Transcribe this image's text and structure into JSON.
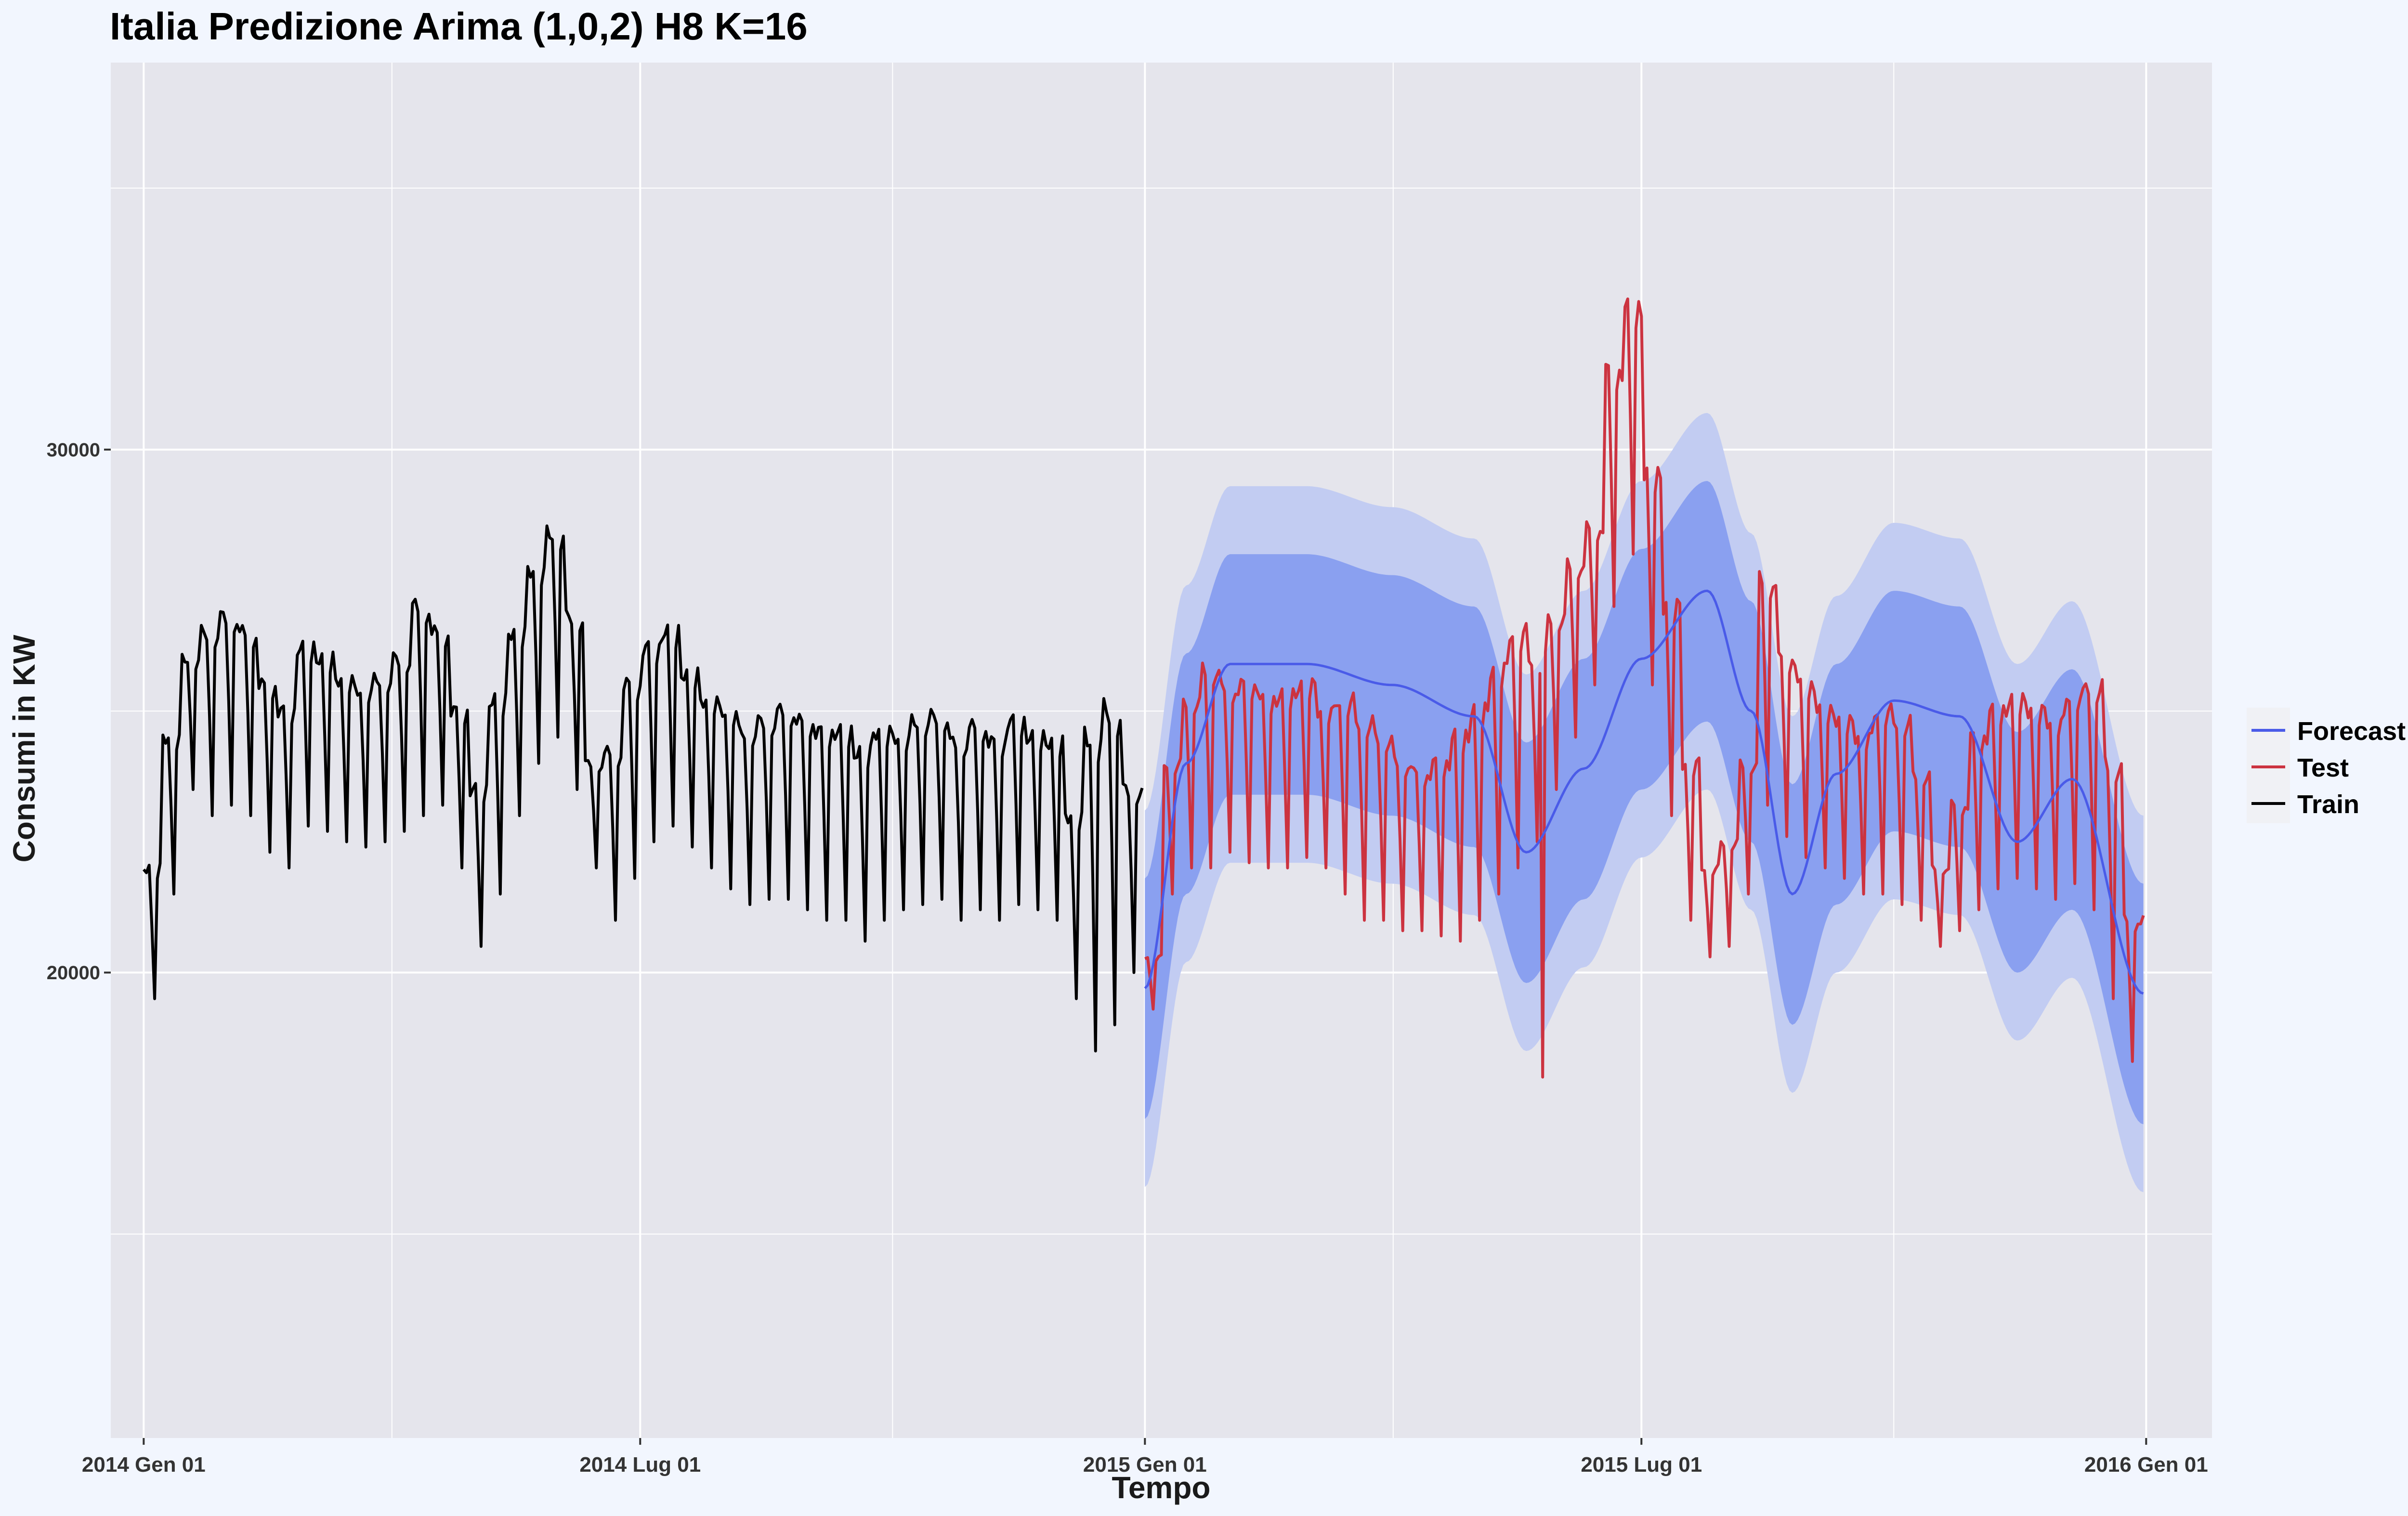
{
  "chart_data": {
    "type": "line",
    "title": "Italia Predizione Arima (1,0,2) H8 K=16",
    "xlabel": "Tempo",
    "ylabel": "Consumi in KW",
    "x_tick_labels": [
      "2014 Gen 01",
      "2014 Lug 01",
      "2015 Gen 01",
      "2015 Lug 01",
      "2016 Gen 01"
    ],
    "y_tick_labels": [
      "20000",
      "30000"
    ],
    "y_ticks": [
      20000,
      30000
    ],
    "ylim": [
      11100,
      37400
    ],
    "xlim": [
      "2013-12-20",
      "2016-01-25"
    ],
    "grid": true,
    "legend_position": "right",
    "legend": [
      {
        "name": "Forecast",
        "color": "#4a5be8"
      },
      {
        "name": "Test",
        "color": "#cc3340"
      },
      {
        "name": "Train",
        "color": "#000000"
      }
    ],
    "colors": {
      "panel": "#e5e5ec",
      "grid": "#ffffff",
      "band80": "#8aa0f0",
      "band95": "#c2ccf2",
      "forecast": "#4a5be8",
      "test": "#cc3340",
      "train": "#000000"
    },
    "series": [
      {
        "name": "Train",
        "x_start": "2014-01-01",
        "x_end": "2014-12-31",
        "step": "day",
        "weekly_weekday_value": [
          22000,
          24500,
          26000,
          26500,
          26800,
          26500,
          25500,
          25000,
          26200,
          26000,
          25600,
          25400,
          25600,
          26000,
          27000,
          26500,
          25000,
          23500,
          25200,
          26500,
          27700,
          28400,
          26800,
          24000,
          24200,
          25500,
          26200,
          26500,
          25700,
          25200,
          25000,
          24600,
          24800,
          25000,
          24800,
          24600,
          24600,
          24200,
          24600,
          24500,
          24800,
          24900,
          24400,
          24700,
          24400,
          24800,
          24500,
          24400,
          23000,
          24500,
          25000,
          23500
        ],
        "weekly_weekend_value": [
          19500,
          21500,
          23500,
          23000,
          23200,
          23000,
          22300,
          22000,
          22800,
          22700,
          22500,
          22400,
          22500,
          22700,
          23000,
          23200,
          22000,
          20500,
          21500,
          23000,
          24000,
          24500,
          23500,
          22000,
          21000,
          21800,
          22500,
          22800,
          22400,
          22000,
          21600,
          21300,
          21400,
          21400,
          21200,
          21000,
          21000,
          20600,
          21000,
          21200,
          21300,
          21400,
          21000,
          21200,
          21000,
          21300,
          21200,
          21000,
          19500,
          18500,
          19000,
          20000
        ]
      },
      {
        "name": "Forecast",
        "x_start": "2015-01-01",
        "x_end": "2015-12-31",
        "knots_x": [
          "2015-01-01",
          "2015-01-16",
          "2015-02-01",
          "2015-03-01",
          "2015-04-01",
          "2015-05-01",
          "2015-05-20",
          "2015-06-10",
          "2015-07-01",
          "2015-07-25",
          "2015-08-10",
          "2015-08-25",
          "2015-09-10",
          "2015-10-01",
          "2015-10-25",
          "2015-11-15",
          "2015-12-05",
          "2015-12-31"
        ],
        "knots_y": [
          19700,
          24000,
          25900,
          25900,
          25500,
          24900,
          22300,
          23900,
          26000,
          27300,
          25000,
          21500,
          23800,
          25200,
          24900,
          22500,
          23700,
          19600
        ],
        "lo80_offset": 2500,
        "hi80_offset": 2100,
        "lo95_offset": 3800,
        "hi95_offset": 3400
      },
      {
        "name": "Test",
        "x_start": "2015-01-01",
        "x_end": "2015-12-31",
        "weekly_weekday_value": [
          20300,
          24000,
          25200,
          25800,
          25400,
          25500,
          25200,
          25300,
          25500,
          25000,
          25200,
          24800,
          24500,
          24000,
          23800,
          24000,
          24500,
          25000,
          25800,
          26500,
          26000,
          26800,
          27800,
          28500,
          31500,
          32700,
          29500,
          27000,
          24000,
          22000,
          22500,
          24000,
          27500,
          26000,
          25500,
          25000,
          24800,
          24500,
          25000,
          24800,
          23800,
          22000,
          23200,
          24500,
          25000,
          25200,
          25000,
          24800,
          25300,
          25500,
          24000,
          21000
        ],
        "weekly_weekend_value": [
          19300,
          21500,
          22000,
          22000,
          22300,
          22100,
          22000,
          22000,
          22200,
          22000,
          21500,
          21000,
          21000,
          20800,
          20800,
          20700,
          20600,
          21000,
          21500,
          22000,
          22500,
          23500,
          24500,
          25500,
          27000,
          28000,
          25500,
          23000,
          21000,
          20300,
          20500,
          21500,
          23200,
          22600,
          22200,
          22000,
          21800,
          21500,
          21500,
          21300,
          21000,
          20500,
          20800,
          21200,
          21600,
          21800,
          21600,
          21400,
          21700,
          21200,
          19500,
          18300
        ],
        "outliers": [
          {
            "x": "2015-05-26",
            "y": 18000
          }
        ]
      }
    ]
  }
}
